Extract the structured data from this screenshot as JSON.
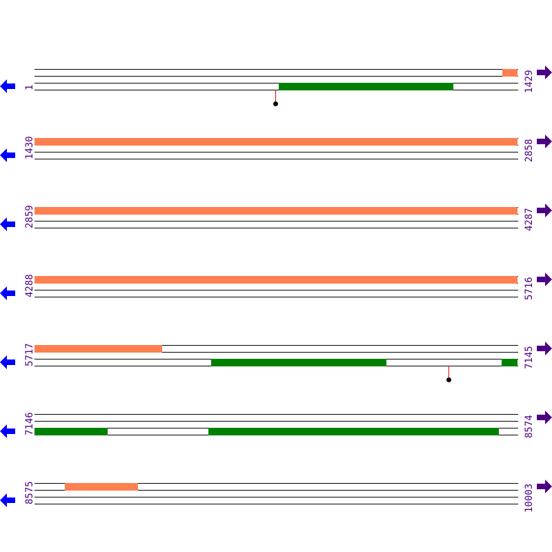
{
  "seq_length": 10003,
  "rows": [
    {
      "start": "1",
      "end": "1429"
    },
    {
      "start": "1430",
      "end": "2858"
    },
    {
      "start": "2859",
      "end": "4287"
    },
    {
      "start": "4288",
      "end": "5716"
    },
    {
      "start": "5717",
      "end": "7145"
    },
    {
      "start": "7146",
      "end": "8574"
    },
    {
      "start": "8575",
      "end": "10003"
    }
  ],
  "features": [
    {
      "track": 0,
      "from": 1385,
      "to": 6095,
      "color": "#ff7f50"
    },
    {
      "track": 0,
      "from": 8665,
      "to": 8881,
      "color": "#ff7f50"
    },
    {
      "track": 2,
      "from": 723,
      "to": 1240,
      "color": "#008000"
    },
    {
      "track": 2,
      "from": 6239,
      "to": 6758,
      "color": "#008000"
    },
    {
      "track": 2,
      "from": 7099,
      "to": 7362,
      "color": "#008000"
    },
    {
      "track": 2,
      "from": 7660,
      "to": 8520,
      "color": "#008000"
    }
  ],
  "markers": [
    713,
    6942
  ],
  "colors": {
    "label": "#4b0082",
    "left_arrow": "#0000ff",
    "right_arrow": "#4b0082",
    "marker_stem": "#dd0000"
  }
}
